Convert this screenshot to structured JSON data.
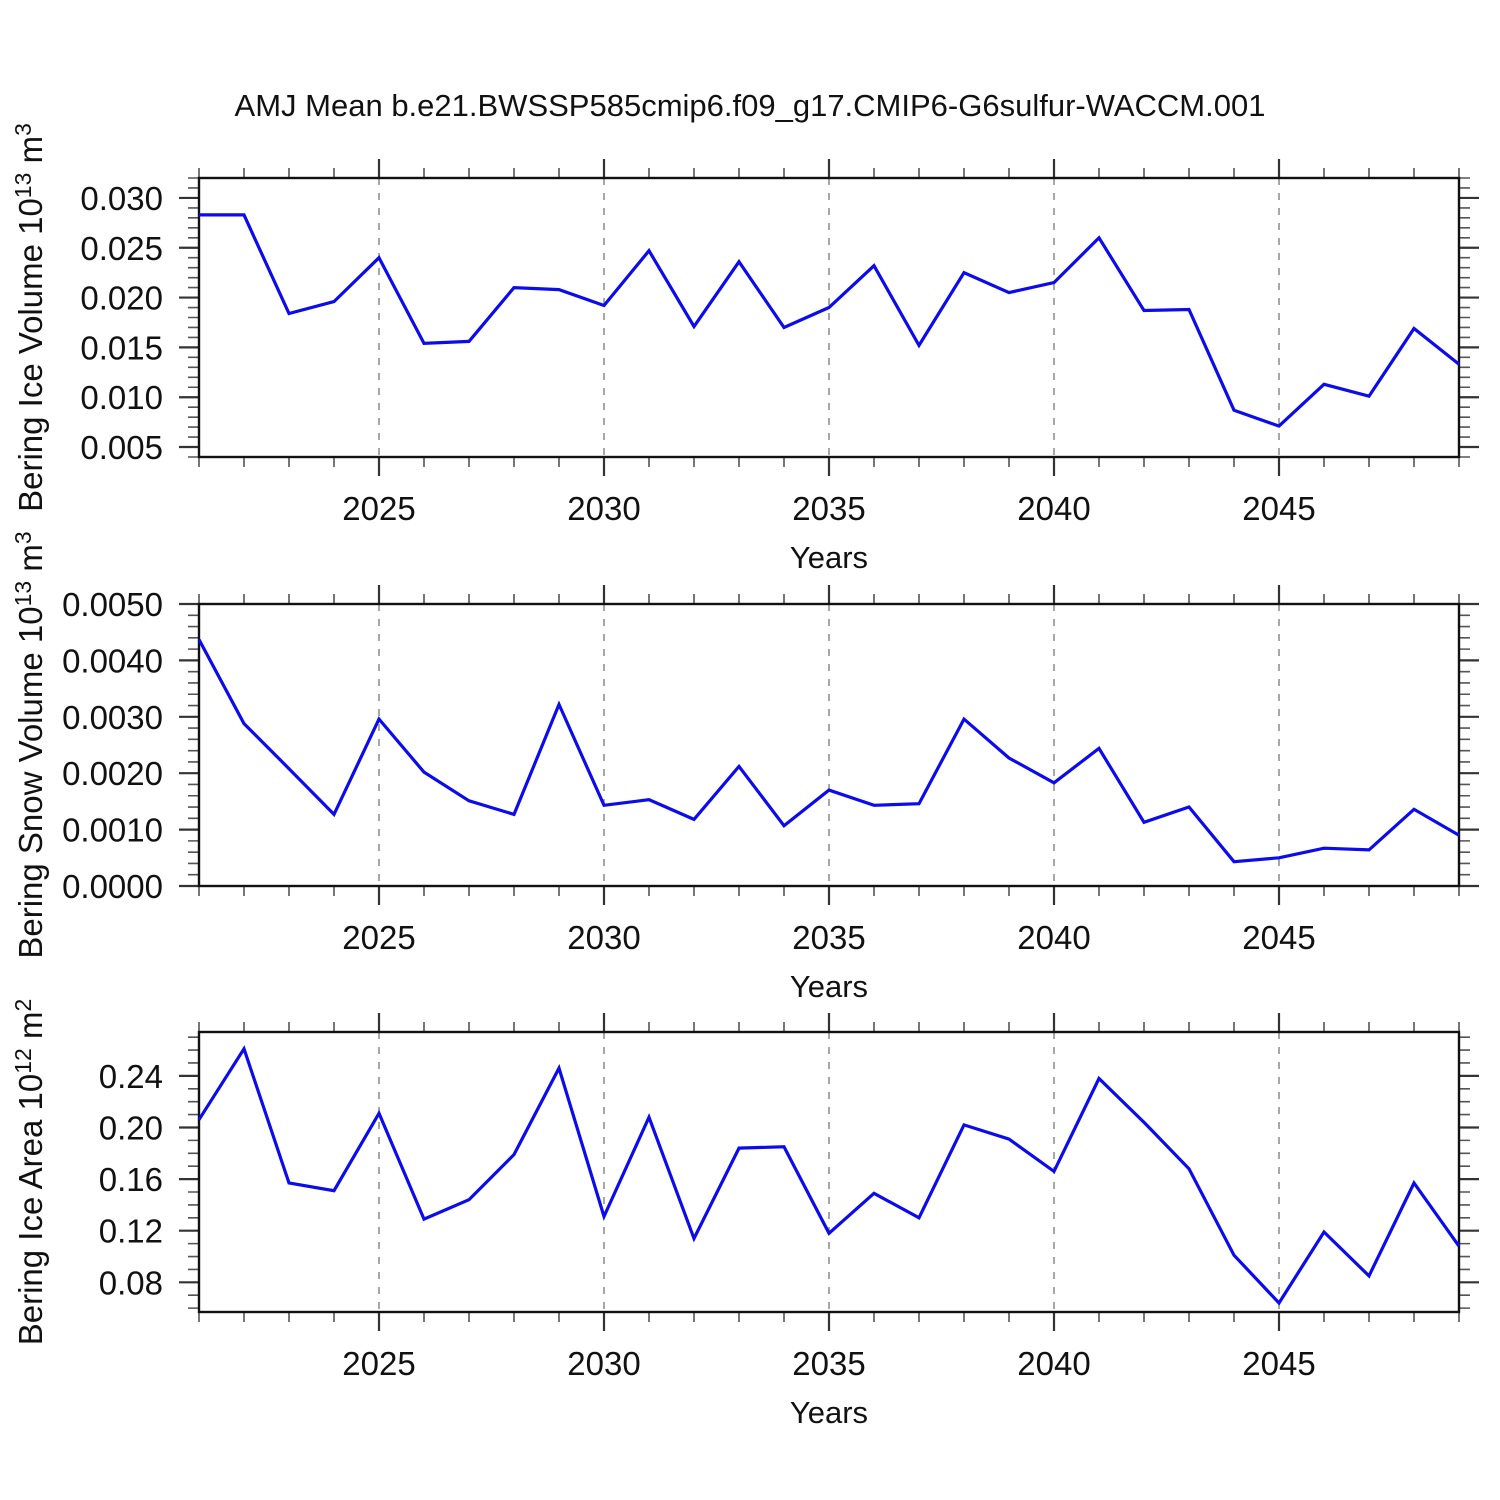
{
  "chart_data": {
    "type": "line",
    "title": "AMJ Mean b.e21.BWSSP585cmip6.f09_g17.CMIP6-G6sulfur-WACCM.001",
    "line_color": "#0b0bee",
    "grid_color": "#8a8a8a",
    "legend": "none",
    "grid": "vertical-dashed-at-major-x-ticks",
    "x": {
      "label": "Years",
      "xlim": [
        2021,
        2049
      ],
      "major_ticks": [
        2025,
        2030,
        2035,
        2040,
        2045
      ],
      "major_tick_labels": [
        "2025",
        "2030",
        "2035",
        "2040",
        "2045"
      ],
      "minor_tick_interval": 1,
      "years": [
        2021,
        2022,
        2023,
        2024,
        2025,
        2026,
        2027,
        2028,
        2029,
        2030,
        2031,
        2032,
        2033,
        2034,
        2035,
        2036,
        2037,
        2038,
        2039,
        2040,
        2041,
        2042,
        2043,
        2044,
        2045,
        2046,
        2047,
        2048,
        2049
      ]
    },
    "panels": [
      {
        "name": "bering-ice-volume",
        "ylabel_plain": "Bering Ice Volume 10^13 m^3",
        "ylabel_segments": [
          {
            "t": "Bering Ice Volume 10"
          },
          {
            "t": "13",
            "sup": true
          },
          {
            "t": " m"
          },
          {
            "t": "3",
            "sup": true
          }
        ],
        "ylim": [
          0.004,
          0.032
        ],
        "ytick_values": [
          0.005,
          0.01,
          0.015,
          0.02,
          0.025,
          0.03
        ],
        "ytick_labels": [
          "0.005",
          "0.010",
          "0.015",
          "0.020",
          "0.025",
          "0.030"
        ],
        "y_minor_interval": 0.001,
        "values": [
          0.0283,
          0.0283,
          0.0184,
          0.0196,
          0.024,
          0.0154,
          0.0156,
          0.021,
          0.0208,
          0.0192,
          0.0247,
          0.0171,
          0.0236,
          0.017,
          0.019,
          0.0232,
          0.0152,
          0.0225,
          0.0205,
          0.0215,
          0.026,
          0.0187,
          0.0188,
          0.0087,
          0.0071,
          0.0113,
          0.0101,
          0.0169,
          0.0133
        ]
      },
      {
        "name": "bering-snow-volume",
        "ylabel_plain": "Bering Snow Volume 10^13 m^3",
        "ylabel_segments": [
          {
            "t": "Bering Snow Volume 10"
          },
          {
            "t": "13",
            "sup": true
          },
          {
            "t": " m"
          },
          {
            "t": "3",
            "sup": true
          }
        ],
        "ylim": [
          0.0,
          0.005
        ],
        "ytick_values": [
          0.0,
          0.001,
          0.002,
          0.003,
          0.004,
          0.005
        ],
        "ytick_labels": [
          "0.0000",
          "0.0010",
          "0.0020",
          "0.0030",
          "0.0040",
          "0.0050"
        ],
        "y_minor_interval": 0.0002,
        "values": [
          0.00437,
          0.00288,
          0.00208,
          0.00127,
          0.00296,
          0.00202,
          0.00151,
          0.00127,
          0.00322,
          0.00143,
          0.00153,
          0.00118,
          0.00212,
          0.00107,
          0.0017,
          0.00143,
          0.00146,
          0.00296,
          0.00227,
          0.00183,
          0.00244,
          0.00113,
          0.0014,
          0.00043,
          0.0005,
          0.00067,
          0.00064,
          0.00136,
          0.0009
        ]
      },
      {
        "name": "bering-ice-area",
        "ylabel_plain": "Bering Ice Area 10^12 m^2",
        "ylabel_segments": [
          {
            "t": "Bering Ice Area 10"
          },
          {
            "t": "12",
            "sup": true
          },
          {
            "t": " m"
          },
          {
            "t": "2",
            "sup": true
          }
        ],
        "ylim": [
          0.057,
          0.274
        ],
        "ytick_values": [
          0.08,
          0.12,
          0.16,
          0.2,
          0.24
        ],
        "ytick_labels": [
          "0.08",
          "0.12",
          "0.16",
          "0.20",
          "0.24"
        ],
        "y_minor_interval": 0.01,
        "values": [
          0.206,
          0.261,
          0.157,
          0.151,
          0.211,
          0.129,
          0.144,
          0.179,
          0.246,
          0.131,
          0.208,
          0.114,
          0.184,
          0.185,
          0.118,
          0.149,
          0.13,
          0.202,
          0.191,
          0.166,
          0.238,
          0.204,
          0.168,
          0.101,
          0.064,
          0.119,
          0.085,
          0.157,
          0.108
        ]
      }
    ]
  }
}
